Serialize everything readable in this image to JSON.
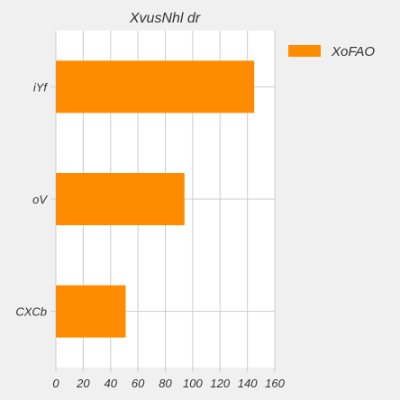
{
  "chart_data": {
    "type": "bar",
    "orientation": "horizontal",
    "title": "XvusNhl dr",
    "categories": [
      "iYf",
      "oV",
      "CXCb"
    ],
    "series": [
      {
        "name": "XoFAO",
        "values": [
          145,
          94,
          51
        ],
        "color": "#ff8c00"
      }
    ],
    "xlim": [
      0,
      160
    ],
    "x_ticks": [
      0,
      20,
      40,
      60,
      80,
      100,
      120,
      140,
      160
    ],
    "xlabel": "",
    "ylabel": "",
    "grid": true,
    "legend_position": "right"
  },
  "colors": {
    "background": "#f0f0f0",
    "plot_background": "#ffffff",
    "grid": "#cccccc",
    "text": "#333333"
  }
}
